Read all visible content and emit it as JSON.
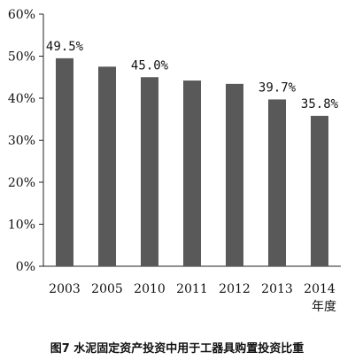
{
  "chart_data": {
    "type": "bar",
    "categories": [
      "2003",
      "2005",
      "2010",
      "2011",
      "2012",
      "2013",
      "2014"
    ],
    "values": [
      49.5,
      47.5,
      45.0,
      44.2,
      43.4,
      39.7,
      35.8
    ],
    "data_labels": [
      "49.5%",
      "",
      "45.0%",
      "",
      "",
      "39.7%",
      "35.8%"
    ],
    "yticks": [
      "0%",
      "10%",
      "20%",
      "30%",
      "40%",
      "50%",
      "60%"
    ],
    "ylim": [
      0,
      60
    ],
    "xlabel": "年度",
    "title": "图7 水泥固定资产投资中用于工器具购置投资比重",
    "bar_color": "#595959",
    "grid": false
  }
}
